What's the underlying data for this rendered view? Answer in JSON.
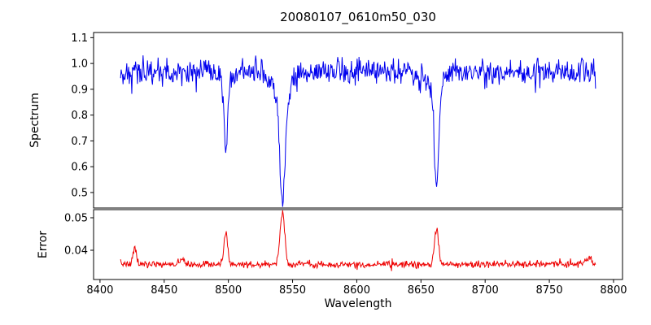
{
  "figure": {
    "background": "#ffffff",
    "axis_color": "#000000"
  },
  "chart_data": {
    "type": "line",
    "title": "20080107_0610m50_030",
    "xlabel": "Wavelength",
    "xlim": [
      8395,
      8807
    ],
    "xticks": {
      "values": [
        8400,
        8450,
        8500,
        8550,
        8600,
        8650,
        8700,
        8750,
        8800
      ],
      "labels": [
        "8400",
        "8450",
        "8500",
        "8550",
        "8600",
        "8650",
        "8700",
        "8750",
        "8800"
      ]
    },
    "grid": false,
    "legend": "none",
    "panels": [
      {
        "ylabel": "Spectrum",
        "ylim": [
          0.44,
          1.12
        ],
        "yticks": {
          "values": [
            0.5,
            0.6,
            0.7,
            0.8,
            0.9,
            1.0,
            1.1
          ],
          "labels": [
            "0.5",
            "0.6",
            "0.7",
            "0.8",
            "0.9",
            "1.0",
            "1.1"
          ]
        },
        "series": {
          "name": "spectrum",
          "color": "#0000ee",
          "seed": 42,
          "x_start": 8416,
          "x_end": 8786,
          "n_points": 760,
          "baseline": 0.968,
          "noise_sigma": 0.027,
          "noise_relative": true,
          "dips": [
            {
              "center": 8498.0,
              "depth": 0.27,
              "sigma": 1.3
            },
            {
              "center": 8498.0,
              "depth": 0.05,
              "sigma": 3.5
            },
            {
              "center": 8542.1,
              "depth": 0.37,
              "sigma": 2.0
            },
            {
              "center": 8542.1,
              "depth": 0.13,
              "sigma": 6.0
            },
            {
              "center": 8662.1,
              "depth": 0.35,
              "sigma": 1.7
            },
            {
              "center": 8662.1,
              "depth": 0.08,
              "sigma": 4.5
            }
          ],
          "peaks": []
        }
      },
      {
        "ylabel": "Error",
        "ylim": [
          0.031,
          0.0525
        ],
        "yticks": {
          "values": [
            0.04,
            0.05
          ],
          "labels": [
            "0.04",
            "0.05"
          ]
        },
        "series": {
          "name": "error",
          "color": "#ee0000",
          "seed": 7,
          "x_start": 8416,
          "x_end": 8786,
          "n_points": 760,
          "baseline": 0.0357,
          "noise_sigma": 0.00055,
          "noise_relative": false,
          "dips": [],
          "peaks": [
            {
              "center": 8427.0,
              "height": 0.0048,
              "sigma": 1.3
            },
            {
              "center": 8464.0,
              "height": 0.0018,
              "sigma": 1.2
            },
            {
              "center": 8498.0,
              "height": 0.0098,
              "sigma": 1.4
            },
            {
              "center": 8542.1,
              "height": 0.0162,
              "sigma": 1.8
            },
            {
              "center": 8662.1,
              "height": 0.0112,
              "sigma": 1.6
            },
            {
              "center": 8781.0,
              "height": 0.002,
              "sigma": 2.0
            }
          ]
        }
      }
    ]
  }
}
